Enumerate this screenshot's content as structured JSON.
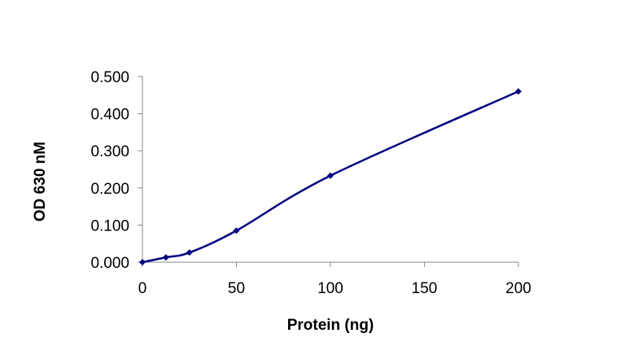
{
  "chart_data": {
    "type": "line",
    "title": "",
    "xlabel": "Protein (ng)",
    "ylabel": "OD 630 nM",
    "xlim": [
      0,
      200
    ],
    "ylim": [
      0,
      0.5
    ],
    "xticks": [
      "0",
      "50",
      "100",
      "150",
      "200"
    ],
    "yticks": [
      "0.000",
      "0.100",
      "0.200",
      "0.300",
      "0.400",
      "0.500"
    ],
    "grid": false,
    "smooth": true,
    "color": "#000080",
    "series": [
      {
        "x": [
          0,
          12.5,
          25,
          50,
          100,
          200
        ],
        "y": [
          0.0,
          0.013,
          0.026,
          0.085,
          0.233,
          0.46
        ]
      }
    ]
  }
}
